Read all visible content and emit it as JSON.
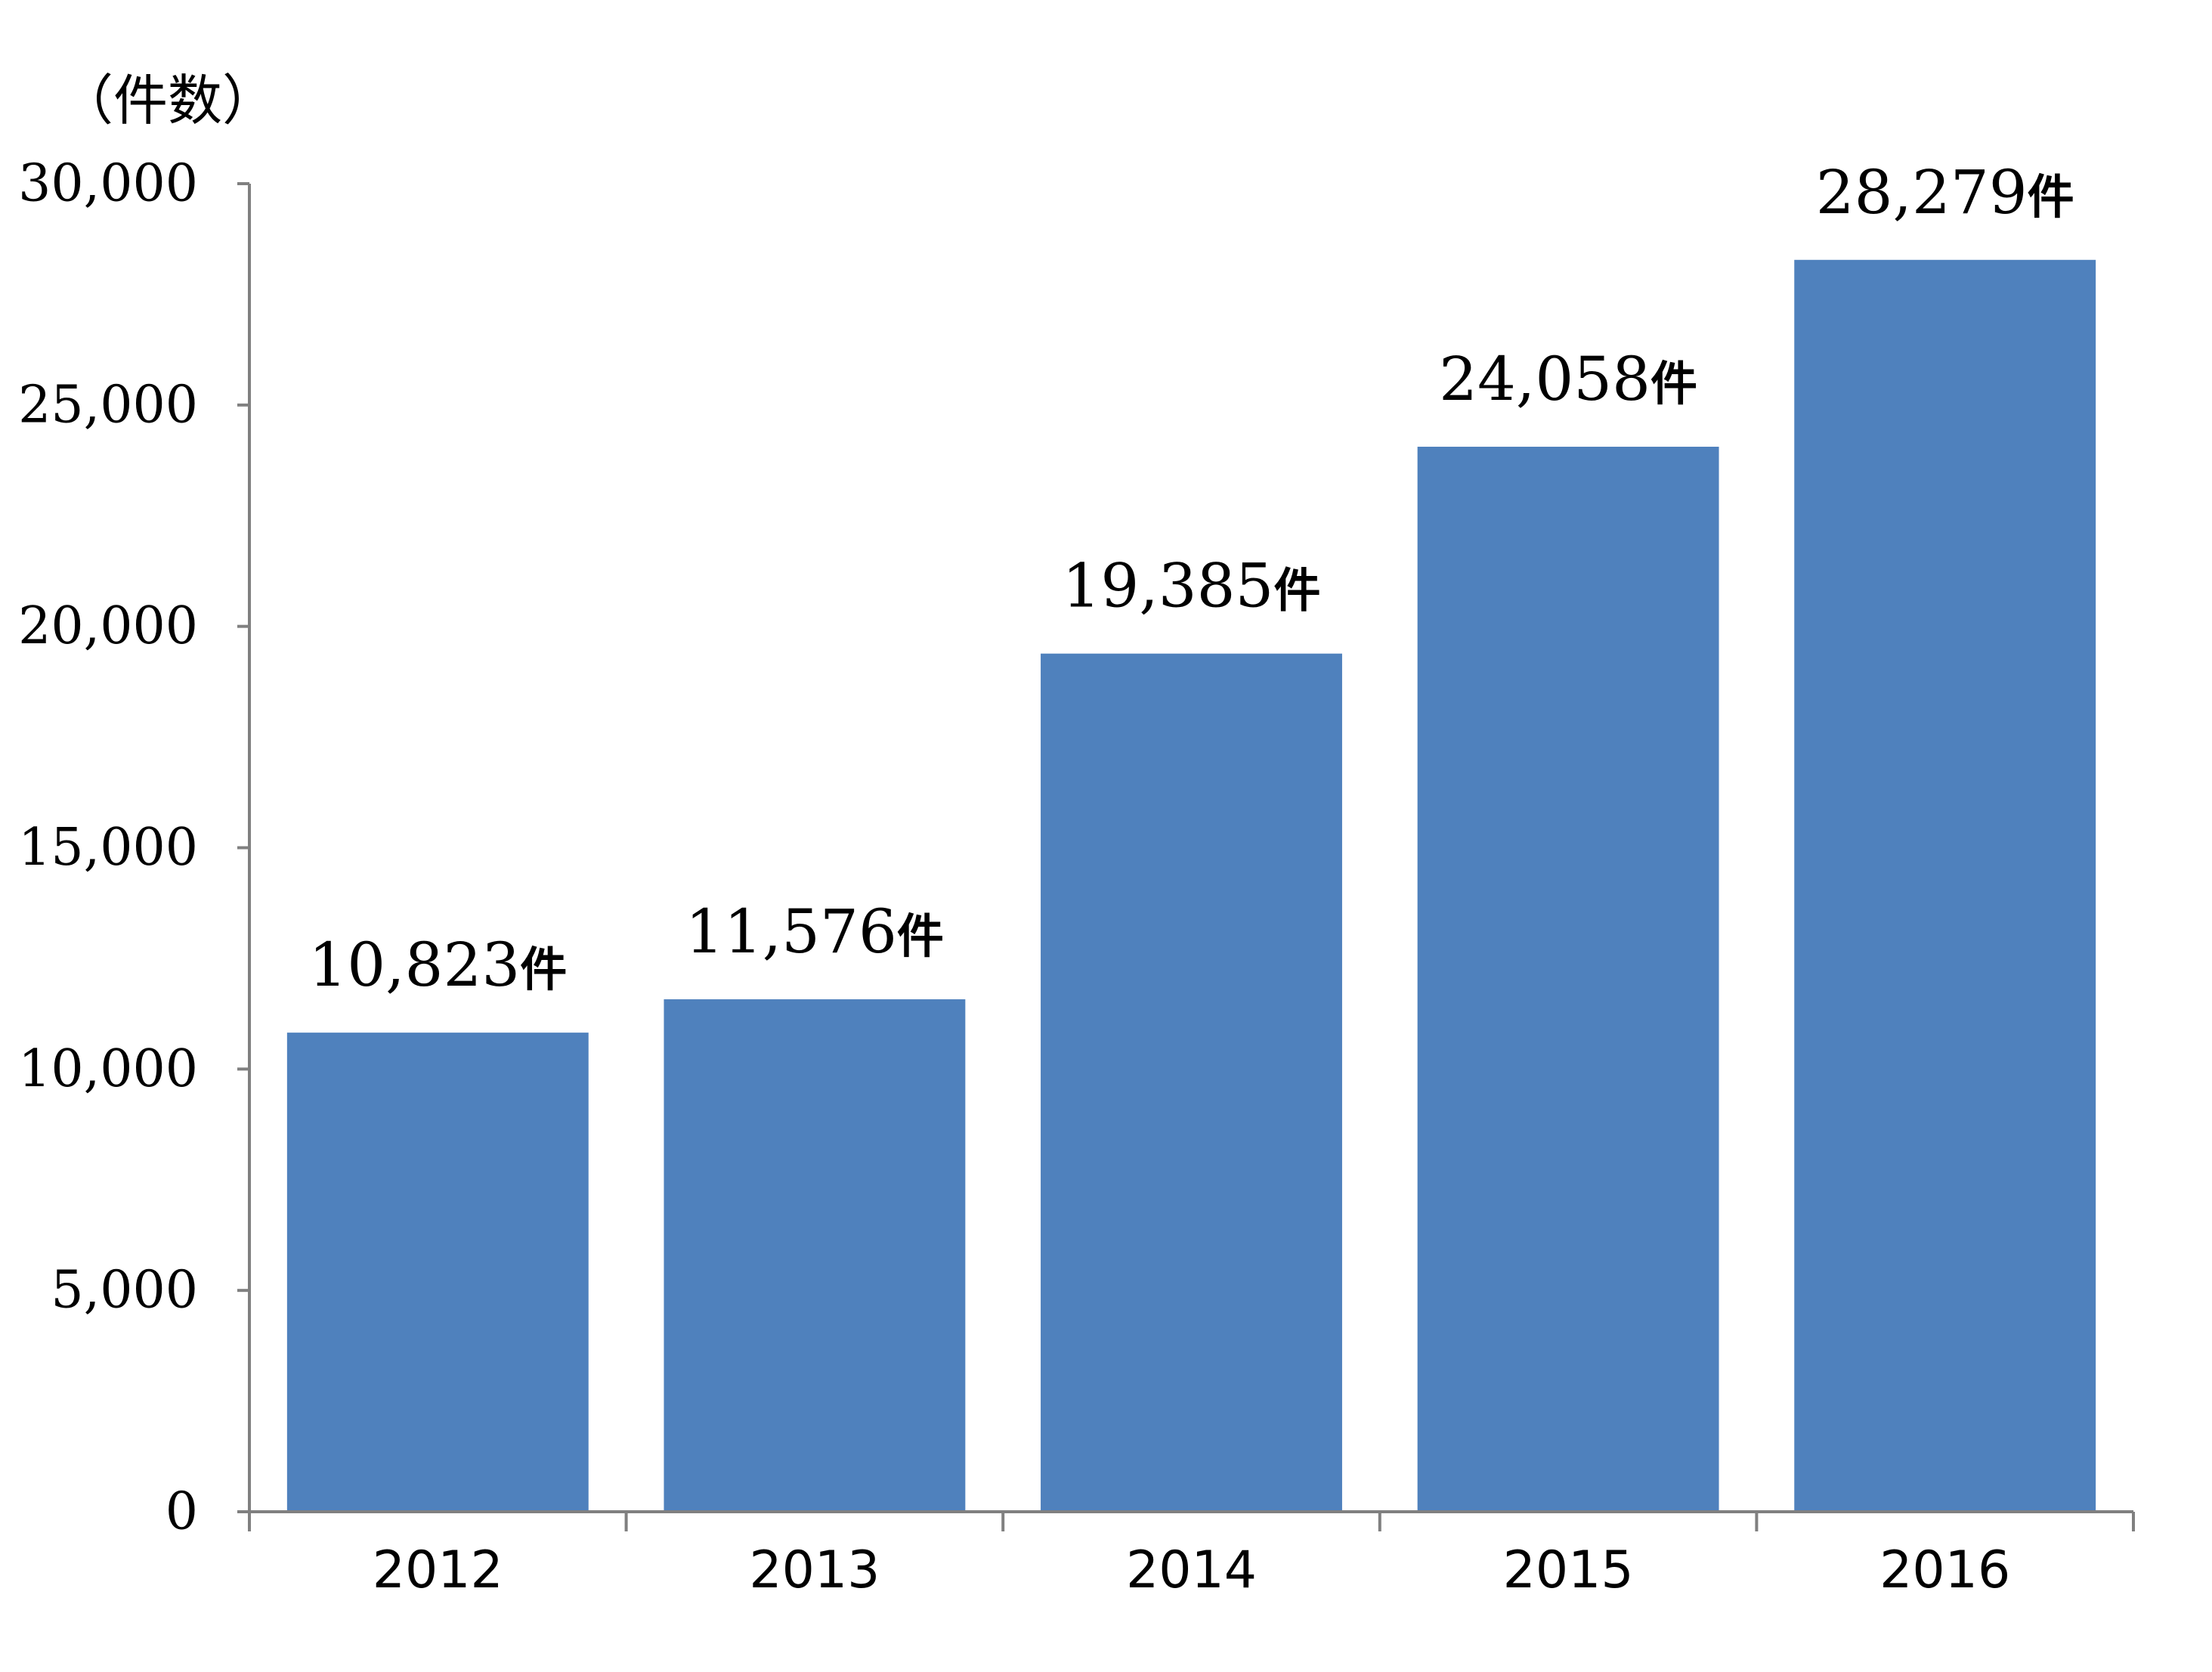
{
  "chart_data": {
    "type": "bar",
    "categories": [
      "2012",
      "2013",
      "2014",
      "2015",
      "2016"
    ],
    "values": [
      10823,
      11576,
      19385,
      24058,
      28279
    ],
    "data_labels": [
      "10,823",
      "11,576",
      "19,385",
      "24,058",
      "28,279"
    ],
    "data_label_suffix": "件",
    "ylabel": "（件数）",
    "ylim": [
      0,
      30000
    ],
    "yticks": [
      0,
      5000,
      10000,
      15000,
      20000,
      25000,
      30000
    ],
    "ytick_labels": [
      "0",
      "5,000",
      "10,000",
      "15,000",
      "20,000",
      "25,000",
      "30,000"
    ],
    "bar_color": "#4F81BD",
    "axis_color": "#808080",
    "grid": false,
    "legend": "none"
  }
}
